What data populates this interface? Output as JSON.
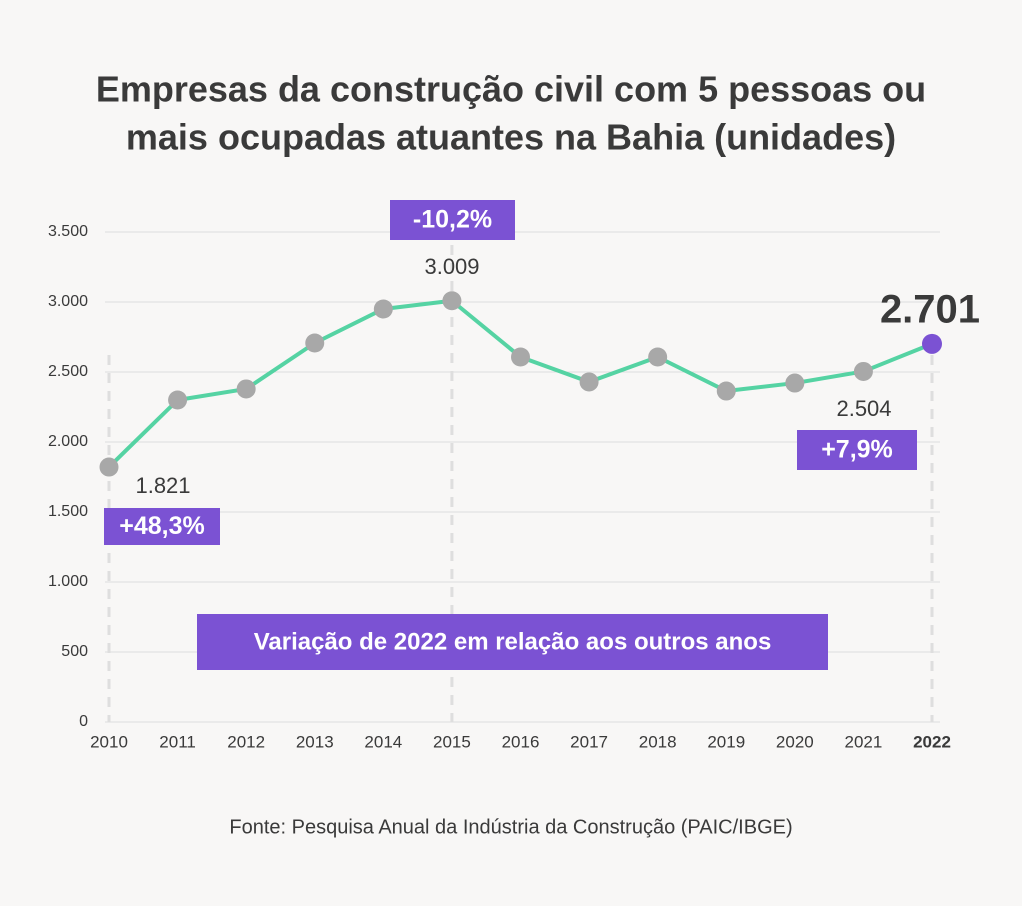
{
  "chart_data": {
    "type": "line",
    "title": [
      "Empresas da construção civil com 5 pessoas ou",
      "mais ocupadas atuantes na Bahia (unidades)"
    ],
    "categories": [
      "2010",
      "2011",
      "2012",
      "2013",
      "2014",
      "2015",
      "2016",
      "2017",
      "2018",
      "2019",
      "2020",
      "2021",
      "2022"
    ],
    "series": [
      {
        "name": "Empresas",
        "color": "#55d3a3",
        "values": [
          1821,
          2300,
          2379,
          2707,
          2950,
          3009,
          2607,
          2429,
          2607,
          2364,
          2421,
          2504,
          2701
        ],
        "value_labels": [
          "1.821",
          null,
          null,
          null,
          null,
          "3.009",
          null,
          null,
          null,
          null,
          null,
          "2.504",
          "2.701"
        ]
      }
    ],
    "marker_color": "#a8a8a8",
    "highlight_color": "#7b52d3",
    "ylim": [
      0,
      3500
    ],
    "yticks": [
      0,
      500,
      {
        "value": 1000,
        "label": "1.000"
      },
      {
        "value": 1500,
        "label": "1.500"
      },
      {
        "value": 2000,
        "label": "2.000"
      },
      {
        "value": 2500,
        "label": "2.500"
      },
      {
        "value": 3000,
        "label": "3.000"
      },
      {
        "value": 3500,
        "label": "3.500"
      }
    ],
    "grid": true,
    "annotations": [
      {
        "text": "+48,3%",
        "x": "2010"
      },
      {
        "text": "-10,2%",
        "x": "2015"
      },
      {
        "text": "+7,9%",
        "x": "2022"
      },
      {
        "text": "Variação de 2022 em relação aos outros anos"
      }
    ],
    "source": "Fonte: Pesquisa Anual da Indústria da Construção (PAIC/IBGE)"
  }
}
